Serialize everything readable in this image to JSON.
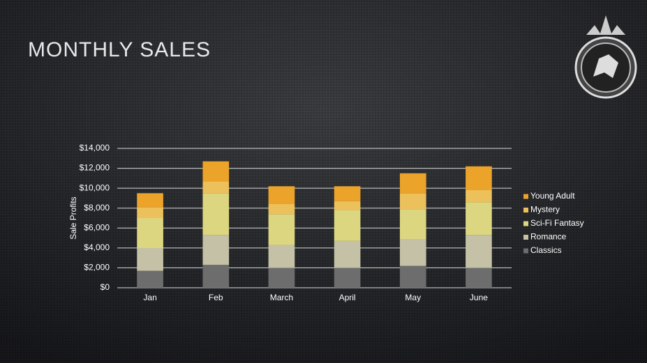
{
  "chart_data": {
    "type": "stacked-bar",
    "title": "MONTHLY SALES",
    "y_label": "Sale Profits",
    "categories": [
      "Jan",
      "Feb",
      "March",
      "April",
      "May",
      "June"
    ],
    "series": [
      {
        "name": "Classics",
        "color": "#6d6d6d",
        "values": [
          1700,
          2300,
          2000,
          2000,
          2200,
          2000
        ]
      },
      {
        "name": "Romance",
        "color": "#c4c1a6",
        "values": [
          2300,
          3000,
          2300,
          2700,
          2700,
          3300
        ]
      },
      {
        "name": "Sci-Fi Fantasy",
        "color": "#ddd680",
        "values": [
          3000,
          4200,
          3100,
          3100,
          3000,
          3300
        ]
      },
      {
        "name": "Mystery",
        "color": "#ecc15c",
        "values": [
          1100,
          1200,
          1000,
          900,
          1600,
          1200
        ]
      },
      {
        "name": "Young Adult",
        "color": "#eba32a",
        "values": [
          1400,
          2000,
          1800,
          1500,
          2000,
          2400
        ]
      }
    ],
    "ylim": [
      0,
      14000
    ],
    "yticks": [
      {
        "value": 0,
        "label": "$0"
      },
      {
        "value": 2000,
        "label": "$2,000"
      },
      {
        "value": 4000,
        "label": "$4,000"
      },
      {
        "value": 6000,
        "label": "$6,000"
      },
      {
        "value": 8000,
        "label": "$8,000"
      },
      {
        "value": 10000,
        "label": "$10,000"
      },
      {
        "value": 12000,
        "label": "$12,000"
      },
      {
        "value": 14000,
        "label": "$14,000"
      }
    ],
    "grid": true,
    "legend": "right"
  }
}
